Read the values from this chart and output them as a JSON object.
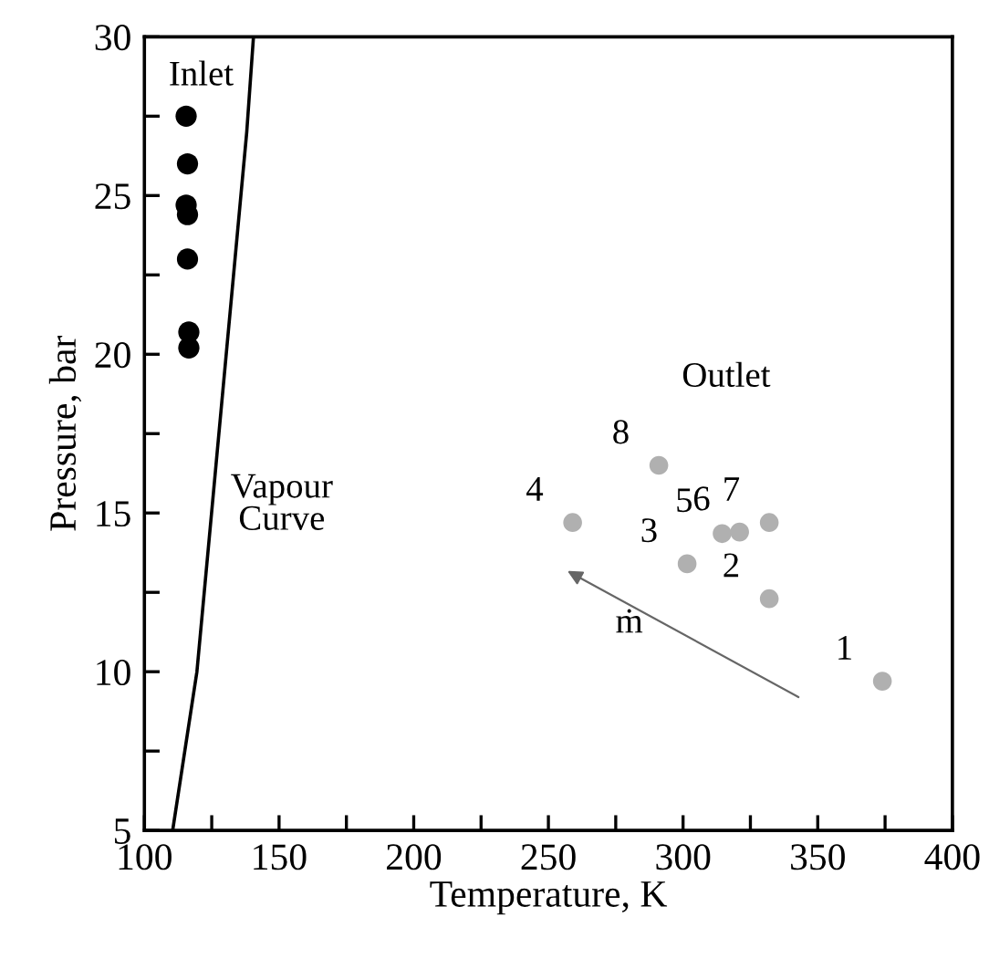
{
  "chart_data": {
    "type": "scatter",
    "xlabel": "Temperature, K",
    "ylabel": "Pressure, bar",
    "series": [
      {
        "name": "Inlet",
        "marker": "circle",
        "color": "#000000",
        "x": [
          115.5,
          116,
          115.5,
          116,
          116,
          116.5,
          116.5
        ],
        "values": [
          27.5,
          26.0,
          24.7,
          24.4,
          23.0,
          20.7,
          20.2
        ]
      },
      {
        "name": "Outlet",
        "marker": "circle",
        "color": "#b0b0b0",
        "x": [
          374,
          332,
          301.5,
          259,
          314.5,
          321,
          332,
          291
        ],
        "values": [
          9.7,
          12.3,
          13.4,
          14.7,
          14.35,
          14.4,
          14.7,
          16.5
        ]
      },
      {
        "name": "Vapour\nCurve",
        "type": "line",
        "color": "#000000",
        "x": [
          110.5,
          119.5,
          138,
          140.5
        ],
        "values": [
          5,
          10,
          27,
          30
        ]
      }
    ],
    "annotations": [
      {
        "text": "1",
        "x": 374,
        "y": 9.7
      },
      {
        "text": "2",
        "x": 332,
        "y": 12.3
      },
      {
        "text": "3",
        "x": 301.5,
        "y": 13.4
      },
      {
        "text": "4",
        "x": 259,
        "y": 14.7
      },
      {
        "text": "5",
        "x": 314.5,
        "y": 14.35
      },
      {
        "text": "6",
        "x": 321,
        "y": 14.4
      },
      {
        "text": "7",
        "x": 332,
        "y": 14.7
      },
      {
        "text": "8",
        "x": 291,
        "y": 16.5
      },
      "ṁ"
    ],
    "xlim": [
      100,
      400
    ],
    "ylim": [
      5,
      30
    ],
    "xticks": [
      100,
      {
        "value": 125,
        "label": null
      },
      150,
      {
        "value": 175,
        "label": null
      },
      200,
      {
        "value": 225,
        "label": null
      },
      250,
      {
        "value": 275,
        "label": null
      },
      300,
      {
        "value": 325,
        "label": null
      },
      350,
      {
        "value": 375,
        "label": null
      },
      400
    ],
    "yticks": [
      5,
      {
        "value": 7.5,
        "label": null
      },
      10,
      {
        "value": 12.5,
        "label": null
      },
      15,
      {
        "value": 17.5,
        "label": null
      },
      20,
      {
        "value": 22.5,
        "label": null
      },
      25,
      {
        "value": 27.5,
        "label": null
      },
      30
    ],
    "grid": false,
    "legend": false
  }
}
